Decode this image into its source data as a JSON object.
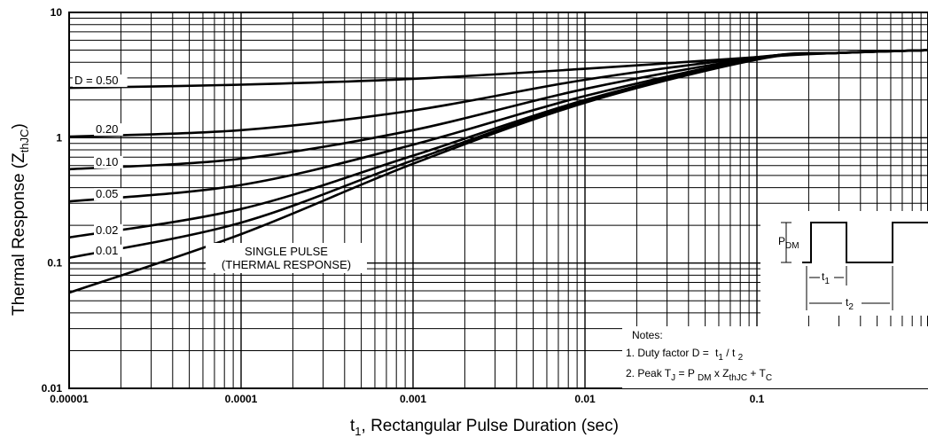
{
  "chart_data": {
    "type": "line",
    "xscale": "log",
    "yscale": "log",
    "xlim": [
      1e-05,
      1
    ],
    "ylim": [
      0.01,
      10
    ],
    "grid": true,
    "xlabel": {
      "pre": "t",
      "sub": "1",
      "post": ", Rectangular Pulse Duration (sec)"
    },
    "ylabel": {
      "pre": "Thermal Response (Z",
      "sub": "thJC",
      "post": ")"
    },
    "x_ticks": [
      {
        "value": 1e-05,
        "label": "0.00001"
      },
      {
        "value": 0.0001,
        "label": "0.0001"
      },
      {
        "value": 0.001,
        "label": "0.001"
      },
      {
        "value": 0.01,
        "label": "0.01"
      },
      {
        "value": 0.1,
        "label": "0.1"
      }
    ],
    "y_ticks": [
      {
        "value": 0.01,
        "label": "0.01"
      },
      {
        "value": 0.1,
        "label": "0.1"
      },
      {
        "value": 1,
        "label": "1"
      },
      {
        "value": 10,
        "label": "10"
      }
    ],
    "series": [
      {
        "name": "D = 0.50",
        "x": [
          1e-05,
          0.0001,
          0.001,
          0.01,
          0.1,
          0.3,
          1
        ],
        "y": [
          2.5,
          2.65,
          2.95,
          3.55,
          4.4,
          4.75,
          5.0
        ]
      },
      {
        "name": "0.20",
        "x": [
          1e-05,
          0.0001,
          0.001,
          0.01,
          0.1,
          0.3,
          1
        ],
        "y": [
          1.02,
          1.15,
          1.65,
          2.9,
          4.4,
          4.75,
          5.0
        ]
      },
      {
        "name": "0.10",
        "x": [
          1e-05,
          0.0001,
          0.001,
          0.01,
          0.1,
          0.3,
          1
        ],
        "y": [
          0.56,
          0.68,
          1.15,
          2.45,
          4.35,
          4.75,
          5.0
        ]
      },
      {
        "name": "0.05",
        "x": [
          1e-05,
          0.0001,
          0.001,
          0.01,
          0.1,
          0.3,
          1
        ],
        "y": [
          0.31,
          0.42,
          0.88,
          2.15,
          4.3,
          4.75,
          5.0
        ]
      },
      {
        "name": "0.02",
        "x": [
          1e-05,
          0.0001,
          0.001,
          0.01,
          0.1,
          0.3,
          1
        ],
        "y": [
          0.16,
          0.27,
          0.72,
          2.0,
          4.3,
          4.75,
          5.0
        ]
      },
      {
        "name": "0.01",
        "x": [
          1e-05,
          0.0001,
          0.001,
          0.01,
          0.1,
          0.3,
          1
        ],
        "y": [
          0.11,
          0.21,
          0.66,
          1.95,
          4.25,
          4.75,
          5.0
        ]
      },
      {
        "name": "SINGLE PULSE (THERMAL RESPONSE)",
        "x": [
          1e-05,
          0.0001,
          0.001,
          0.01,
          0.1,
          0.3,
          1
        ],
        "y": [
          0.058,
          0.17,
          0.62,
          1.9,
          4.2,
          4.75,
          5.0
        ]
      }
    ],
    "curve_labels": [
      "D = 0.50",
      "0.20",
      "0.10",
      "0.05",
      "0.02",
      "0.01"
    ],
    "single_pulse_label": [
      "SINGLE PULSE",
      "(THERMAL RESPONSE)"
    ],
    "pulse_diagram": {
      "pdm": {
        "pre": "P",
        "sub": "DM"
      },
      "t1": {
        "pre": "t",
        "sub": "1"
      },
      "t2": {
        "pre": "t",
        "sub": "2"
      }
    },
    "notes": {
      "title": "Notes:",
      "line1": {
        "pre": "1. Duty factor D = ",
        "t1": "t",
        "t1sub": "1",
        "mid": " / t ",
        "t2sub": "2"
      },
      "line2": {
        "pre": "2. Peak T",
        "tjsub": "J",
        "eq": " = P ",
        "pdmsub": "DM",
        "x": " x  Z",
        "zsub": "thJC",
        "plus": "  + T",
        "tcsub": "C"
      }
    }
  }
}
